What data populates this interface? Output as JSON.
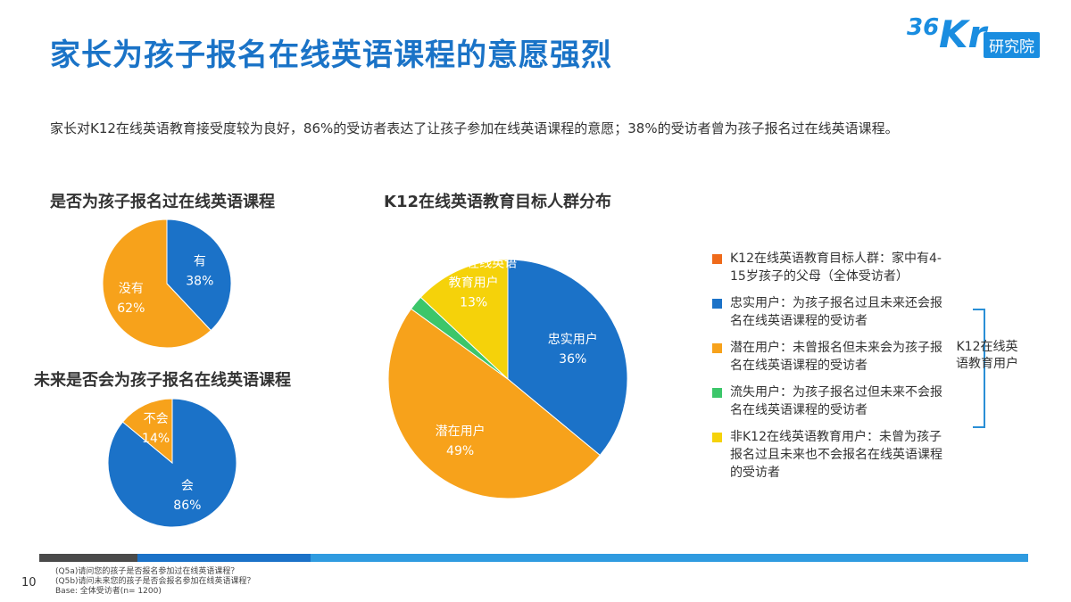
{
  "title": "家长为孩子报名在线英语课程的意愿强烈",
  "logo": {
    "num": "36",
    "kr": "Kr",
    "tag": "研究院"
  },
  "description": "家长对K12在线英语教育接受度较为良好，86%的受访者表达了让孩子参加在线英语课程的意愿；38%的受访者曾为孩子报名过在线英语课程。",
  "chart_data": [
    {
      "type": "pie",
      "title": "是否为孩子报名过在线英语课程",
      "slices": [
        {
          "label": "有",
          "value": 38,
          "display": "38%",
          "color": "#1b72c8"
        },
        {
          "label": "没有",
          "value": 62,
          "display": "62%",
          "color": "#f7a21b"
        }
      ]
    },
    {
      "type": "pie",
      "title": "未来是否会为孩子报名在线英语课程",
      "slices": [
        {
          "label": "会",
          "value": 86,
          "display": "86%",
          "color": "#1b72c8"
        },
        {
          "label": "不会",
          "value": 14,
          "display": "14%",
          "color": "#f7a21b"
        }
      ]
    },
    {
      "type": "pie",
      "title": "K12在线英语教育目标人群分布",
      "slices": [
        {
          "label": "忠实用户",
          "value": 36,
          "display": "36%",
          "color": "#1b72c8"
        },
        {
          "label": "潜在用户",
          "value": 49,
          "display": "49%",
          "color": "#f7a21b"
        },
        {
          "label": "流失用户",
          "value": 2,
          "display": "2%",
          "color": "#3cc66a"
        },
        {
          "label": "非K12在线英语教育用户",
          "value": 13,
          "display": "13%",
          "color": "#f5d20a"
        }
      ]
    }
  ],
  "legend": [
    {
      "text": "K12在线英语教育目标人群：家中有4-15岁孩子的父母（全体受访者）",
      "color": "#ef6a1a"
    },
    {
      "text": "忠实用户：为孩子报名过且未来还会报名在线英语课程的受访者",
      "color": "#1b72c8"
    },
    {
      "text": "潜在用户：未曾报名但未来会为孩子报名在线英语课程的受访者",
      "color": "#f7a21b"
    },
    {
      "text": "流失用户：为孩子报名过但未来不会报名在线英语课程的受访者",
      "color": "#3cc66a"
    },
    {
      "text": "非K12在线英语教育用户：未曾为孩子报名过且未来也不会报名在线英语课程的受访者",
      "color": "#f5d20a"
    }
  ],
  "bracket_label": "K12在线英语教育用户",
  "page_number": "10",
  "notes": [
    "(Q5a)请问您的孩子是否报名参加过在线英语课程？",
    "(Q5b)请问未来您的孩子是否会报名参加在线英语课程？",
    "Base: 全体受访者(n= 1200)"
  ],
  "footer_colors": [
    "#4a4a4a",
    "#1b72c8",
    "#2f9be0"
  ]
}
